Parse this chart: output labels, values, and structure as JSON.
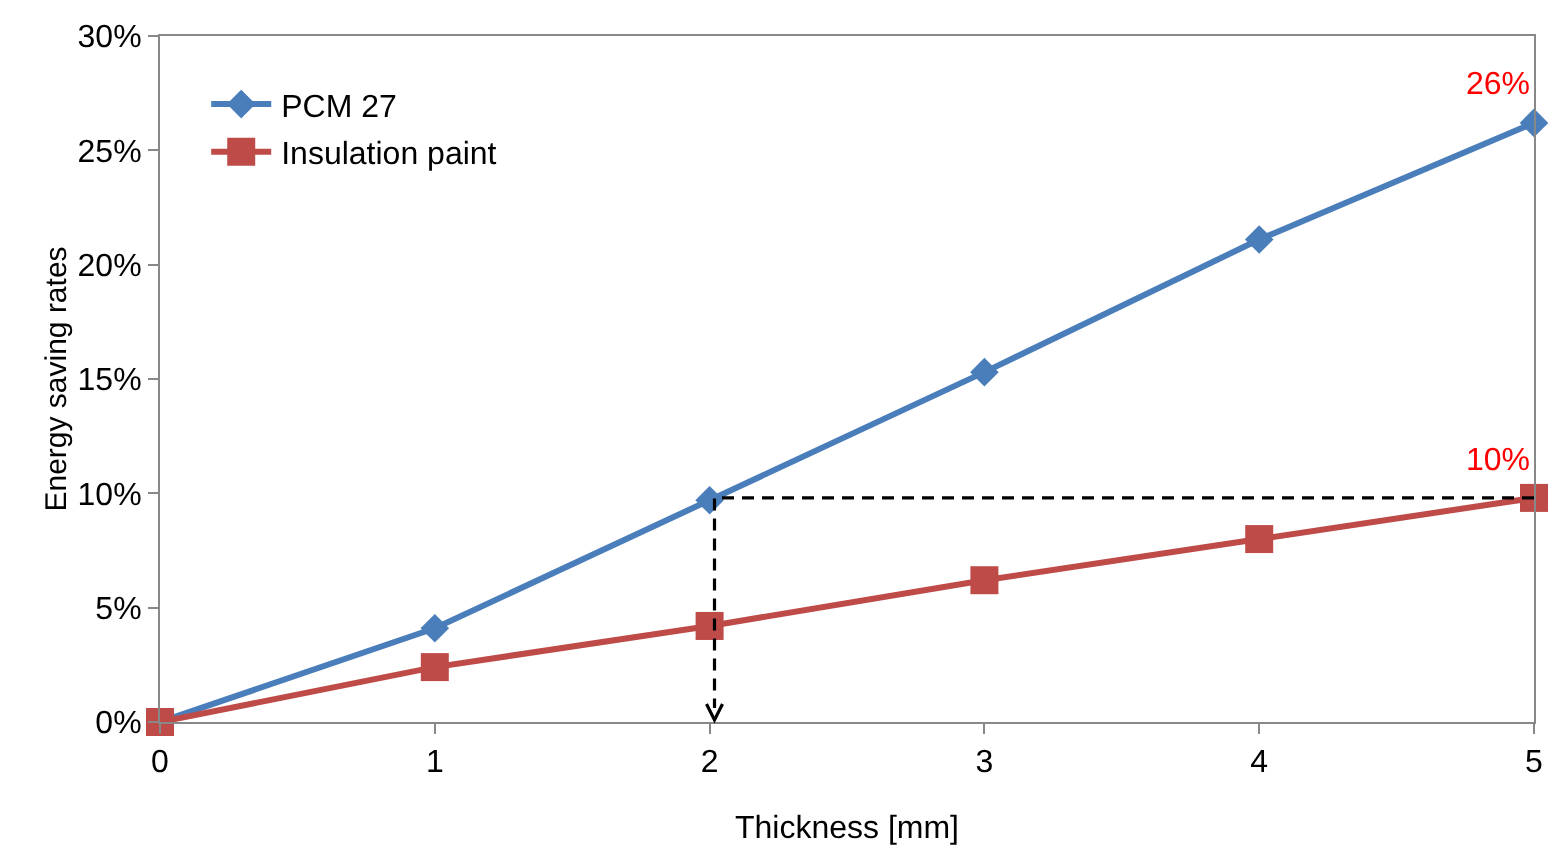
{
  "chart_data": {
    "type": "line",
    "xlabel": "Thickness [mm]",
    "ylabel": "Energy saving rates",
    "x": [
      0,
      1,
      2,
      3,
      4,
      5
    ],
    "series": [
      {
        "name": "PCM 27",
        "color": "#4a7ebb",
        "marker": "diamond",
        "values": [
          0,
          4.1,
          9.7,
          15.3,
          21.1,
          26.2
        ]
      },
      {
        "name": "Insulation paint",
        "color": "#be4b48",
        "marker": "square",
        "values": [
          0,
          2.4,
          4.2,
          6.2,
          8.0,
          9.8
        ]
      }
    ],
    "annotations": [
      {
        "text": "26%",
        "x": 5,
        "y": 26.2
      },
      {
        "text": "10%",
        "x": 5,
        "y": 9.8
      }
    ],
    "xlim": [
      0,
      5
    ],
    "xticks": [
      0,
      1,
      2,
      3,
      4,
      5
    ],
    "ylim": [
      0,
      30
    ],
    "yticks": [
      {
        "value": 0,
        "label": "0%"
      },
      {
        "value": 5,
        "label": "5%"
      },
      {
        "value": 10,
        "label": "10%"
      },
      {
        "value": 15,
        "label": "15%"
      },
      {
        "value": 20,
        "label": "20%"
      },
      {
        "value": 25,
        "label": "25%"
      },
      {
        "value": 30,
        "label": "30%"
      }
    ],
    "grid": false,
    "legend": "top left"
  }
}
